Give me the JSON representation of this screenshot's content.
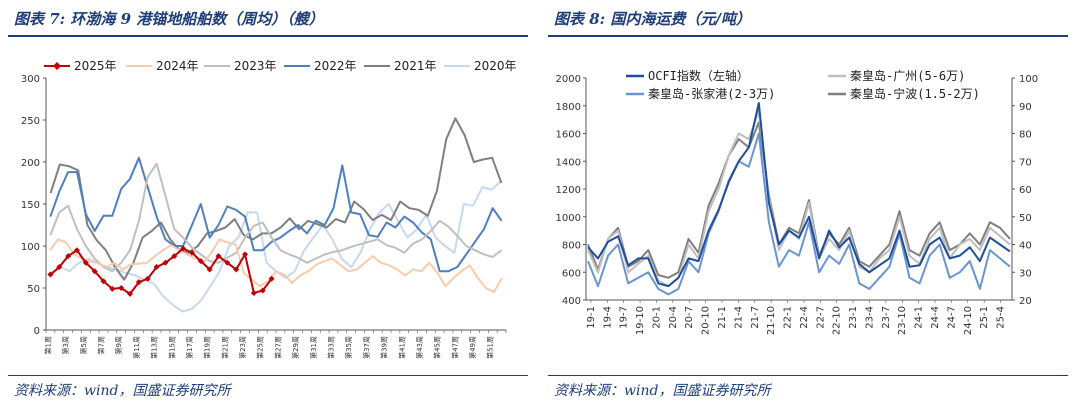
{
  "left_panel": {
    "title": "图表 7: 环渤海 9 港锚地船舶数（周均）（艘）",
    "source": "资料来源：wind，国盛证券研究所"
  },
  "right_panel": {
    "title": "图表 8: 国内海运费（元/吨）",
    "source": "资料来源：wind，国盛证券研究所"
  },
  "chart_data": [
    {
      "type": "line",
      "title": "环渤海 9 港锚地船舶数（周均）（艘）",
      "ylim": [
        0,
        300
      ],
      "yticks": [
        0,
        50,
        100,
        150,
        200,
        250,
        300
      ],
      "x_labels": [
        "第1周",
        "第3周",
        "第5周",
        "第7周",
        "第9周",
        "第11周",
        "第13周",
        "第15周",
        "第17周",
        "第19周",
        "第21周",
        "第23周",
        "第25周",
        "第27周",
        "第29周",
        "第31周",
        "第33周",
        "第35周",
        "第37周",
        "第39周",
        "第41周",
        "第43周",
        "第45周",
        "第47周",
        "第49周",
        "第51周"
      ],
      "legend_position": "top",
      "series": [
        {
          "name": "2025年",
          "color": "#c00000",
          "markers": true,
          "values": [
            66,
            75,
            88,
            95,
            80,
            70,
            58,
            49,
            50,
            43,
            57,
            61,
            75,
            80,
            88,
            97,
            92,
            82,
            72,
            88,
            80,
            72,
            90,
            44,
            47,
            61
          ]
        },
        {
          "name": "2024年",
          "color": "#f8cbad",
          "values": [
            95,
            108,
            104,
            90,
            85,
            82,
            79,
            75,
            80,
            72,
            78,
            79,
            80,
            88,
            95,
            101,
            95,
            90,
            85,
            80,
            92,
            108,
            104,
            102,
            68,
            60,
            52,
            58,
            70,
            66,
            56,
            65,
            70,
            78,
            82,
            85,
            77,
            70,
            72,
            80,
            88,
            80,
            77,
            72,
            65,
            72,
            70,
            80,
            68,
            52,
            62,
            70,
            77,
            62,
            50,
            45,
            62
          ]
        },
        {
          "name": "2023年",
          "color": "#bfbfbf",
          "values": [
            113,
            140,
            148,
            120,
            100,
            85,
            75,
            70,
            80,
            95,
            130,
            182,
            198,
            160,
            120,
            110,
            98,
            90,
            82,
            80,
            86,
            92,
            110,
            124,
            128,
            110,
            95,
            90,
            86,
            80,
            85,
            90,
            93,
            95,
            99,
            102,
            105,
            108,
            101,
            98,
            92,
            103,
            108,
            118,
            130,
            123,
            112,
            100,
            95,
            90,
            87,
            95
          ]
        },
        {
          "name": "2022年",
          "color": "#4e7fbf",
          "values": [
            135,
            165,
            188,
            188,
            138,
            118,
            136,
            136,
            168,
            180,
            205,
            170,
            135,
            108,
            100,
            100,
            125,
            150,
            110,
            125,
            147,
            143,
            135,
            95,
            95,
            105,
            110,
            118,
            125,
            115,
            130,
            125,
            145,
            196,
            140,
            138,
            113,
            111,
            128,
            122,
            135,
            128,
            116,
            108,
            70,
            70,
            75,
            90,
            105,
            120,
            145,
            130
          ]
        },
        {
          "name": "2021年",
          "color": "#7f7f7f",
          "values": [
            163,
            197,
            195,
            190,
            125,
            107,
            95,
            75,
            60,
            80,
            110,
            118,
            128,
            108,
            95,
            92,
            100,
            115,
            118,
            122,
            132,
            113,
            108,
            115,
            115,
            122,
            133,
            120,
            130,
            126,
            122,
            132,
            128,
            153,
            144,
            131,
            137,
            131,
            153,
            145,
            143,
            136,
            166,
            227,
            252,
            232,
            200,
            203,
            205,
            175
          ]
        },
        {
          "name": "2020年",
          "color": "#c5d9f1",
          "values": [
            65,
            75,
            70,
            80,
            85,
            80,
            75,
            72,
            68,
            65,
            60,
            55,
            40,
            30,
            22,
            25,
            35,
            52,
            70,
            100,
            110,
            140,
            140,
            80,
            70,
            62,
            70,
            95,
            110,
            125,
            108,
            85,
            75,
            92,
            120,
            140,
            150,
            130,
            110,
            120,
            137,
            110,
            100,
            92,
            150,
            148,
            170,
            167,
            178
          ]
        }
      ]
    },
    {
      "type": "line",
      "title": "国内海运费（元/吨）",
      "ylim_left": [
        400,
        2000
      ],
      "yticks_left": [
        400,
        600,
        800,
        1000,
        1200,
        1400,
        1600,
        1800,
        2000
      ],
      "ylim_right": [
        20,
        100
      ],
      "yticks_right": [
        20,
        30,
        40,
        50,
        60,
        70,
        80,
        90,
        100
      ],
      "x_labels": [
        "19-1",
        "19-4",
        "19-7",
        "19-10",
        "20-1",
        "20-4",
        "20-7",
        "20-10",
        "21-1",
        "21-4",
        "21-7",
        "21-10",
        "22-1",
        "22-4",
        "22-7",
        "22-10",
        "23-1",
        "23-4",
        "23-7",
        "23-10",
        "24-1",
        "24-4",
        "24-7",
        "24-10",
        "25-1",
        "25-4"
      ],
      "legend_position": "top",
      "series": [
        {
          "name": "OCFI指数（左轴）",
          "axis": "left",
          "color": "#1f4e9c",
          "values": [
            780,
            700,
            820,
            860,
            650,
            700,
            700,
            520,
            500,
            560,
            700,
            680,
            900,
            1050,
            1250,
            1400,
            1500,
            1820,
            1100,
            800,
            900,
            850,
            1000,
            700,
            900,
            780,
            850,
            660,
            600,
            650,
            700,
            900,
            640,
            650,
            800,
            850,
            700,
            720,
            780,
            680,
            850,
            800,
            750
          ]
        },
        {
          "name": "秦皇岛-广州(5-6万)",
          "axis": "right",
          "color": "#bfbfbf",
          "values": [
            38,
            30,
            42,
            45,
            30,
            33,
            36,
            27,
            25,
            28,
            40,
            35,
            52,
            60,
            72,
            80,
            78,
            88,
            57,
            38,
            45,
            42,
            55,
            35,
            42,
            38,
            45,
            32,
            30,
            35,
            38,
            50,
            36,
            33,
            42,
            46,
            35,
            40,
            42,
            38,
            46,
            43,
            40
          ]
        },
        {
          "name": "秦皇岛-张家港(2-3万)",
          "axis": "right",
          "color": "#6a95d0",
          "values": [
            34,
            25,
            36,
            40,
            26,
            28,
            30,
            24,
            22,
            24,
            34,
            30,
            44,
            52,
            63,
            70,
            68,
            80,
            48,
            32,
            38,
            36,
            48,
            30,
            36,
            33,
            40,
            26,
            24,
            28,
            32,
            44,
            28,
            26,
            36,
            40,
            28,
            30,
            34,
            24,
            38,
            35,
            32
          ]
        },
        {
          "name": "秦皇岛-宁波(1.5-2万)",
          "axis": "right",
          "color": "#7f7f7f",
          "values": [
            40,
            31,
            42,
            46,
            32,
            34,
            38,
            29,
            28,
            30,
            42,
            37,
            54,
            62,
            72,
            78,
            75,
            84,
            58,
            40,
            46,
            44,
            56,
            36,
            44,
            40,
            46,
            34,
            32,
            36,
            40,
            52,
            38,
            36,
            44,
            48,
            38,
            40,
            44,
            40,
            48,
            46,
            42
          ]
        }
      ]
    }
  ]
}
